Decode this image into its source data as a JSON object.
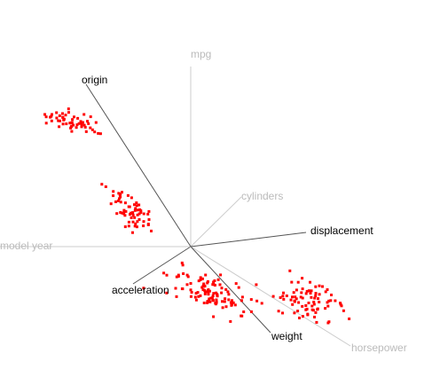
{
  "chart_data": {
    "type": "scatter",
    "projection": "3D projection of a multivariate dataset (radial axis plot)",
    "title": "",
    "point_color": "#ff0000",
    "axis_color_dark": "#555555",
    "axis_color_light": "#cccccc",
    "axes": [
      {
        "name": "mpg",
        "label": "mpg",
        "emphasis": "light"
      },
      {
        "name": "cylinders",
        "label": "cylinders",
        "emphasis": "light"
      },
      {
        "name": "displacement",
        "label": "displacement",
        "emphasis": "dark"
      },
      {
        "name": "horsepower",
        "label": "horsepower",
        "emphasis": "light"
      },
      {
        "name": "weight",
        "label": "weight",
        "emphasis": "dark"
      },
      {
        "name": "acceleration",
        "label": "acceleration",
        "emphasis": "dark"
      },
      {
        "name": "model_year",
        "label": "model year",
        "emphasis": "light"
      },
      {
        "name": "origin",
        "label": "origin",
        "emphasis": "dark"
      }
    ],
    "clusters": [
      {
        "name": "",
        "count": 55,
        "center": [
          85,
          138
        ],
        "spread": [
          30,
          10
        ],
        "tilt": 0.18
      },
      {
        "name": "",
        "count": 65,
        "center": [
          145,
          235
        ],
        "spread": [
          22,
          22
        ],
        "tilt": 0.4
      },
      {
        "name": "",
        "count": 110,
        "center": [
          235,
          330
        ],
        "spread": [
          40,
          22
        ],
        "tilt": 0.25
      },
      {
        "name": "",
        "count": 80,
        "center": [
          350,
          340
        ],
        "spread": [
          38,
          18
        ],
        "tilt": 0.05
      }
    ]
  }
}
